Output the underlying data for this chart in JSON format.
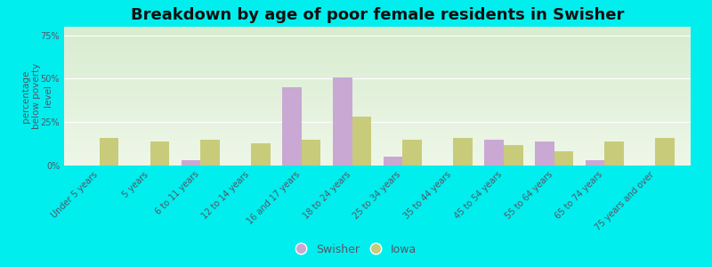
{
  "title": "Breakdown by age of poor female residents in Swisher",
  "ylabel": "percentage\nbelow poverty\nlevel",
  "categories": [
    "Under 5 years",
    "5 years",
    "6 to 11 years",
    "12 to 14 years",
    "16 and 17 years",
    "18 to 24 years",
    "25 to 34 years",
    "35 to 44 years",
    "45 to 54 years",
    "55 to 64 years",
    "65 to 74 years",
    "75 years and over"
  ],
  "swisher_values": [
    0,
    0,
    3,
    0,
    45,
    51,
    5,
    0,
    15,
    14,
    3,
    0
  ],
  "iowa_values": [
    16,
    14,
    15,
    13,
    15,
    28,
    15,
    16,
    12,
    8,
    14,
    16
  ],
  "swisher_color": "#c9a8d4",
  "iowa_color": "#c8cc7a",
  "outer_bg_color": "#00eeee",
  "plot_bg_color_top": "#d8ecd0",
  "plot_bg_color_bottom": "#eef7e8",
  "grid_color": "#ffffff",
  "text_color": "#555566",
  "ylim": [
    0,
    80
  ],
  "yticks": [
    0,
    25,
    50,
    75
  ],
  "ytick_labels": [
    "0%",
    "25%",
    "50%",
    "75%"
  ],
  "bar_width": 0.38,
  "title_fontsize": 13,
  "axis_label_fontsize": 7.5,
  "tick_fontsize": 7,
  "legend_fontsize": 9
}
